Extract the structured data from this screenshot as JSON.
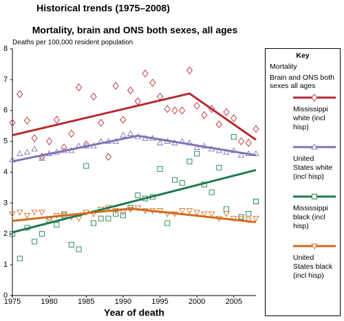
{
  "chart_data": {
    "type": "scatter",
    "title": "Historical trends (1975–2008)",
    "subtitle": "Mortality, brain and ONS both sexes, all ages",
    "y_label": "Deaths per 100,000 resident population",
    "x_label": "Year of death",
    "xlim": [
      1975,
      2008
    ],
    "xticks": [
      1975,
      1980,
      1985,
      1990,
      1995,
      2000,
      2005
    ],
    "ylim": [
      0,
      8
    ],
    "yticks": [
      0,
      1,
      2,
      3,
      4,
      5,
      6,
      7,
      8
    ],
    "legend": {
      "title": "Key",
      "subtitle": "Mortality",
      "description": "Brain and ONS both sexes all ages",
      "position": "right"
    },
    "x": [
      1975,
      1976,
      1977,
      1978,
      1979,
      1980,
      1981,
      1982,
      1983,
      1984,
      1985,
      1986,
      1987,
      1988,
      1989,
      1990,
      1991,
      1992,
      1993,
      1994,
      1995,
      1996,
      1997,
      1998,
      1999,
      2000,
      2001,
      2002,
      2003,
      2004,
      2005,
      2006,
      2007,
      2008
    ],
    "series": [
      {
        "name": "Mississippi white (incl hisp)",
        "color": "#b5282f",
        "marker": "diamond",
        "values": [
          5.6,
          6.53,
          5.67,
          5.1,
          4.5,
          5.0,
          5.7,
          4.8,
          5.25,
          6.75,
          4.9,
          6.45,
          5.6,
          4.5,
          6.8,
          5.7,
          6.65,
          6.3,
          7.2,
          6.9,
          6.45,
          6.05,
          6.0,
          6.0,
          7.3,
          6.15,
          5.85,
          6.05,
          5.55,
          5.95,
          5.75,
          5.0,
          4.95,
          5.4
        ],
        "trend": {
          "x": [
            1975,
            1999,
            2008
          ],
          "values": [
            5.2,
            6.55,
            5.05
          ]
        }
      },
      {
        "name": "United States white (incl hisp)",
        "color": "#7f73b5",
        "marker": "triangle-up",
        "values": [
          4.4,
          4.6,
          4.65,
          4.75,
          4.45,
          4.6,
          4.65,
          4.7,
          4.7,
          4.85,
          4.85,
          4.85,
          5.0,
          5.0,
          5.0,
          5.2,
          5.25,
          5.15,
          5.1,
          5.1,
          4.95,
          5.0,
          4.95,
          5.0,
          4.95,
          4.8,
          4.85,
          4.75,
          4.7,
          4.65,
          4.7,
          4.55,
          4.6,
          4.6
        ],
        "trend": {
          "x": [
            1975,
            1992,
            2008
          ],
          "values": [
            4.35,
            5.18,
            4.55
          ]
        }
      },
      {
        "name": "Mississippi black (incl hisp)",
        "color": "#1f7a4c",
        "marker": "square",
        "values": [
          2.0,
          1.2,
          2.2,
          1.75,
          2.0,
          2.45,
          2.3,
          2.6,
          1.65,
          1.5,
          4.2,
          2.35,
          2.5,
          2.5,
          2.65,
          2.6,
          2.85,
          3.25,
          3.15,
          3.2,
          4.1,
          2.35,
          3.75,
          3.65,
          4.35,
          4.6,
          3.6,
          3.35,
          4.15,
          2.8,
          5.15,
          2.55,
          2.65,
          3.05
        ],
        "trend": {
          "x": [
            1975,
            2008
          ],
          "values": [
            2.05,
            4.07
          ]
        }
      },
      {
        "name": "United States black (incl hisp)",
        "color": "#d2691e",
        "marker": "triangle-down",
        "values": [
          2.65,
          2.7,
          2.6,
          2.7,
          2.7,
          2.5,
          2.6,
          2.65,
          2.55,
          2.5,
          2.7,
          2.65,
          2.8,
          2.85,
          2.75,
          2.7,
          2.8,
          2.85,
          2.75,
          2.75,
          2.75,
          2.65,
          2.65,
          2.75,
          2.75,
          2.7,
          2.65,
          2.65,
          2.5,
          2.65,
          2.5,
          2.5,
          2.45,
          2.5
        ],
        "trend": {
          "x": [
            1975,
            1991,
            2008
          ],
          "values": [
            2.42,
            2.82,
            2.38
          ]
        }
      }
    ]
  }
}
